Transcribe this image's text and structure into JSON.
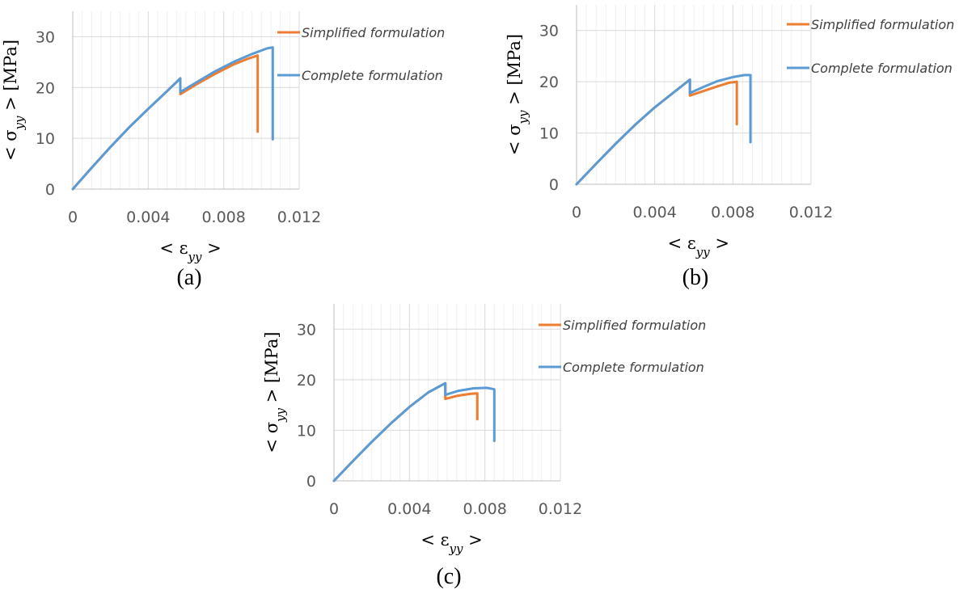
{
  "chart_data": [
    {
      "type": "line",
      "caption": "(a)",
      "xlabel": "< εyy >",
      "ylabel": "< σyy > [MPa]",
      "xlim": [
        0,
        0.012
      ],
      "ylim": [
        0,
        35
      ],
      "xticks": [
        "0",
        "0.004",
        "0.008",
        "0.012"
      ],
      "yticks": [
        "0",
        "10",
        "20",
        "30"
      ],
      "grid": true,
      "legend_position": "right",
      "series": [
        {
          "name": "Simplified formulation",
          "color": "#ED7D31",
          "x": [
            0,
            0.001,
            0.002,
            0.003,
            0.004,
            0.005,
            0.0057,
            0.0057,
            0.0065,
            0.0075,
            0.0085,
            0.0093,
            0.0098,
            0.0098
          ],
          "y": [
            0,
            4.2,
            8.3,
            12.2,
            15.8,
            19.3,
            21.8,
            18.7,
            20.5,
            22.6,
            24.5,
            25.7,
            26.3,
            11.3
          ]
        },
        {
          "name": "Complete formulation",
          "color": "#5B9BD5",
          "x": [
            0,
            0.001,
            0.002,
            0.003,
            0.004,
            0.005,
            0.0057,
            0.0057,
            0.0065,
            0.0075,
            0.0085,
            0.0095,
            0.0103,
            0.0106,
            0.0106
          ],
          "y": [
            0,
            4.2,
            8.3,
            12.2,
            15.8,
            19.3,
            21.8,
            19.1,
            20.9,
            23.1,
            25.0,
            26.6,
            27.7,
            27.9,
            9.8
          ]
        }
      ]
    },
    {
      "type": "line",
      "caption": "(b)",
      "xlabel": "< εyy >",
      "ylabel": "< σyy > [MPa]",
      "xlim": [
        0,
        0.012
      ],
      "ylim": [
        0,
        35
      ],
      "xticks": [
        "0",
        "0.004",
        "0.008",
        "0.012"
      ],
      "yticks": [
        "0",
        "10",
        "20",
        "30"
      ],
      "grid": true,
      "legend_position": "right",
      "series": [
        {
          "name": "Simplified formulation",
          "color": "#ED7D31",
          "x": [
            0,
            0.001,
            0.002,
            0.003,
            0.004,
            0.005,
            0.0058,
            0.0058,
            0.0065,
            0.0072,
            0.0078,
            0.0082,
            0.0082
          ],
          "y": [
            0,
            4.0,
            7.9,
            11.6,
            15.0,
            18.0,
            20.4,
            17.3,
            18.2,
            19.1,
            19.8,
            20.0,
            11.7
          ]
        },
        {
          "name": "Complete formulation",
          "color": "#5B9BD5",
          "x": [
            0,
            0.001,
            0.002,
            0.003,
            0.004,
            0.005,
            0.0058,
            0.0058,
            0.0065,
            0.0072,
            0.008,
            0.0086,
            0.0089,
            0.0089
          ],
          "y": [
            0,
            4.0,
            7.9,
            11.6,
            15.0,
            18.0,
            20.4,
            17.8,
            19.0,
            20.1,
            20.9,
            21.3,
            21.3,
            8.2
          ]
        }
      ]
    },
    {
      "type": "line",
      "caption": "(c)",
      "xlabel": "< εyy >",
      "ylabel": "< σyy > [MPa]",
      "xlim": [
        0,
        0.012
      ],
      "ylim": [
        0,
        35
      ],
      "xticks": [
        "0",
        "0.004",
        "0.008",
        "0.012"
      ],
      "yticks": [
        "0",
        "10",
        "20",
        "30"
      ],
      "grid": true,
      "legend_position": "right",
      "series": [
        {
          "name": "Simplified formulation",
          "color": "#ED7D31",
          "x": [
            0,
            0.001,
            0.002,
            0.003,
            0.004,
            0.005,
            0.0059,
            0.0059,
            0.0065,
            0.0072,
            0.0076,
            0.0076
          ],
          "y": [
            0,
            3.9,
            7.7,
            11.3,
            14.6,
            17.5,
            19.3,
            16.2,
            16.8,
            17.2,
            17.3,
            12.2
          ]
        },
        {
          "name": "Complete formulation",
          "color": "#5B9BD5",
          "x": [
            0,
            0.001,
            0.002,
            0.003,
            0.004,
            0.005,
            0.0059,
            0.0059,
            0.0066,
            0.0074,
            0.0081,
            0.0085,
            0.0085
          ],
          "y": [
            0,
            3.9,
            7.7,
            11.3,
            14.6,
            17.5,
            19.3,
            17.0,
            17.8,
            18.3,
            18.4,
            18.1,
            7.9
          ]
        }
      ]
    }
  ]
}
